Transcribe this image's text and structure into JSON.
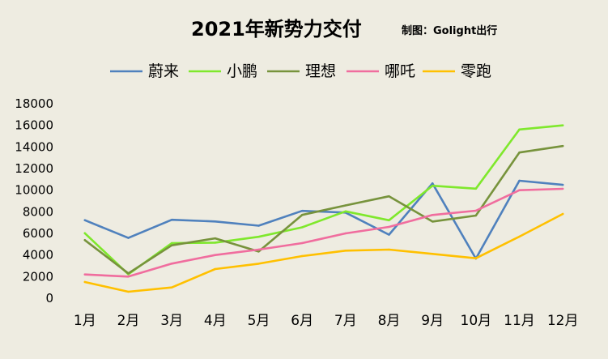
{
  "chart_data": {
    "type": "line",
    "title": "2021年新势力交付",
    "subtitle": "制图：Golight出行",
    "xlabel": "",
    "ylabel": "",
    "categories": [
      "1月",
      "2月",
      "3月",
      "4月",
      "5月",
      "6月",
      "7月",
      "8月",
      "9月",
      "10月",
      "11月",
      "12月"
    ],
    "ylim": [
      0,
      18000
    ],
    "yticks": [
      0,
      2000,
      4000,
      6000,
      8000,
      10000,
      12000,
      14000,
      16000,
      18000
    ],
    "grid": false,
    "legend_position": "top",
    "series": [
      {
        "name": "蔚来",
        "color": "#4F81BD",
        "values": [
          7225,
          5578,
          7257,
          7102,
          6711,
          8083,
          7931,
          5880,
          10628,
          3667,
          10878,
          10489
        ]
      },
      {
        "name": "小鹏",
        "color": "#7FE82C",
        "values": [
          6015,
          2223,
          5102,
          5147,
          5686,
          6565,
          8040,
          7214,
          10412,
          10138,
          15613,
          16000
        ]
      },
      {
        "name": "理想",
        "color": "#77933C",
        "values": [
          5379,
          2300,
          4900,
          5539,
          4323,
          7713,
          8589,
          9433,
          7094,
          7649,
          13485,
          14087
        ]
      },
      {
        "name": "哪吒",
        "color": "#F06D9E",
        "values": [
          2200,
          2000,
          3200,
          4000,
          4500,
          5100,
          6000,
          6600,
          7700,
          8100,
          10000,
          10127
        ]
      },
      {
        "name": "零跑",
        "color": "#FFC000",
        "values": [
          1500,
          600,
          1000,
          2700,
          3195,
          3900,
          4400,
          4500,
          4100,
          3700,
          5700,
          7800
        ]
      }
    ]
  }
}
